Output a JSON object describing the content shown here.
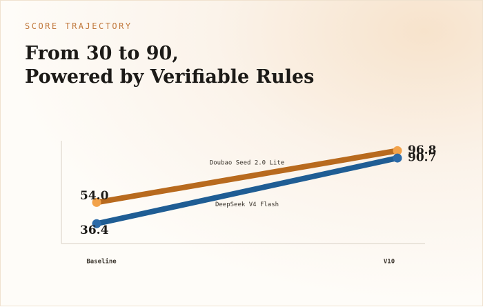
{
  "header": {
    "eyebrow": "SCORE TRAJECTORY",
    "title_lines": [
      "From 30 to 90,",
      "Powered by Verifiable Rules"
    ]
  },
  "chart_data": {
    "type": "line",
    "categories": [
      "Baseline",
      "V10"
    ],
    "ylim": [
      20,
      105
    ],
    "series": [
      {
        "name": "Doubao Seed 2.0 Lite",
        "color": "#b86a1e",
        "marker_color": "#f2a24a",
        "values": [
          54.0,
          96.8
        ],
        "value_labels": [
          "54.0",
          "96.8"
        ]
      },
      {
        "name": "DeepSeek V4 Flash",
        "color": "#1f5d94",
        "marker_color": "#2b6aa8",
        "values": [
          36.4,
          90.7
        ]
      }
    ]
  }
}
